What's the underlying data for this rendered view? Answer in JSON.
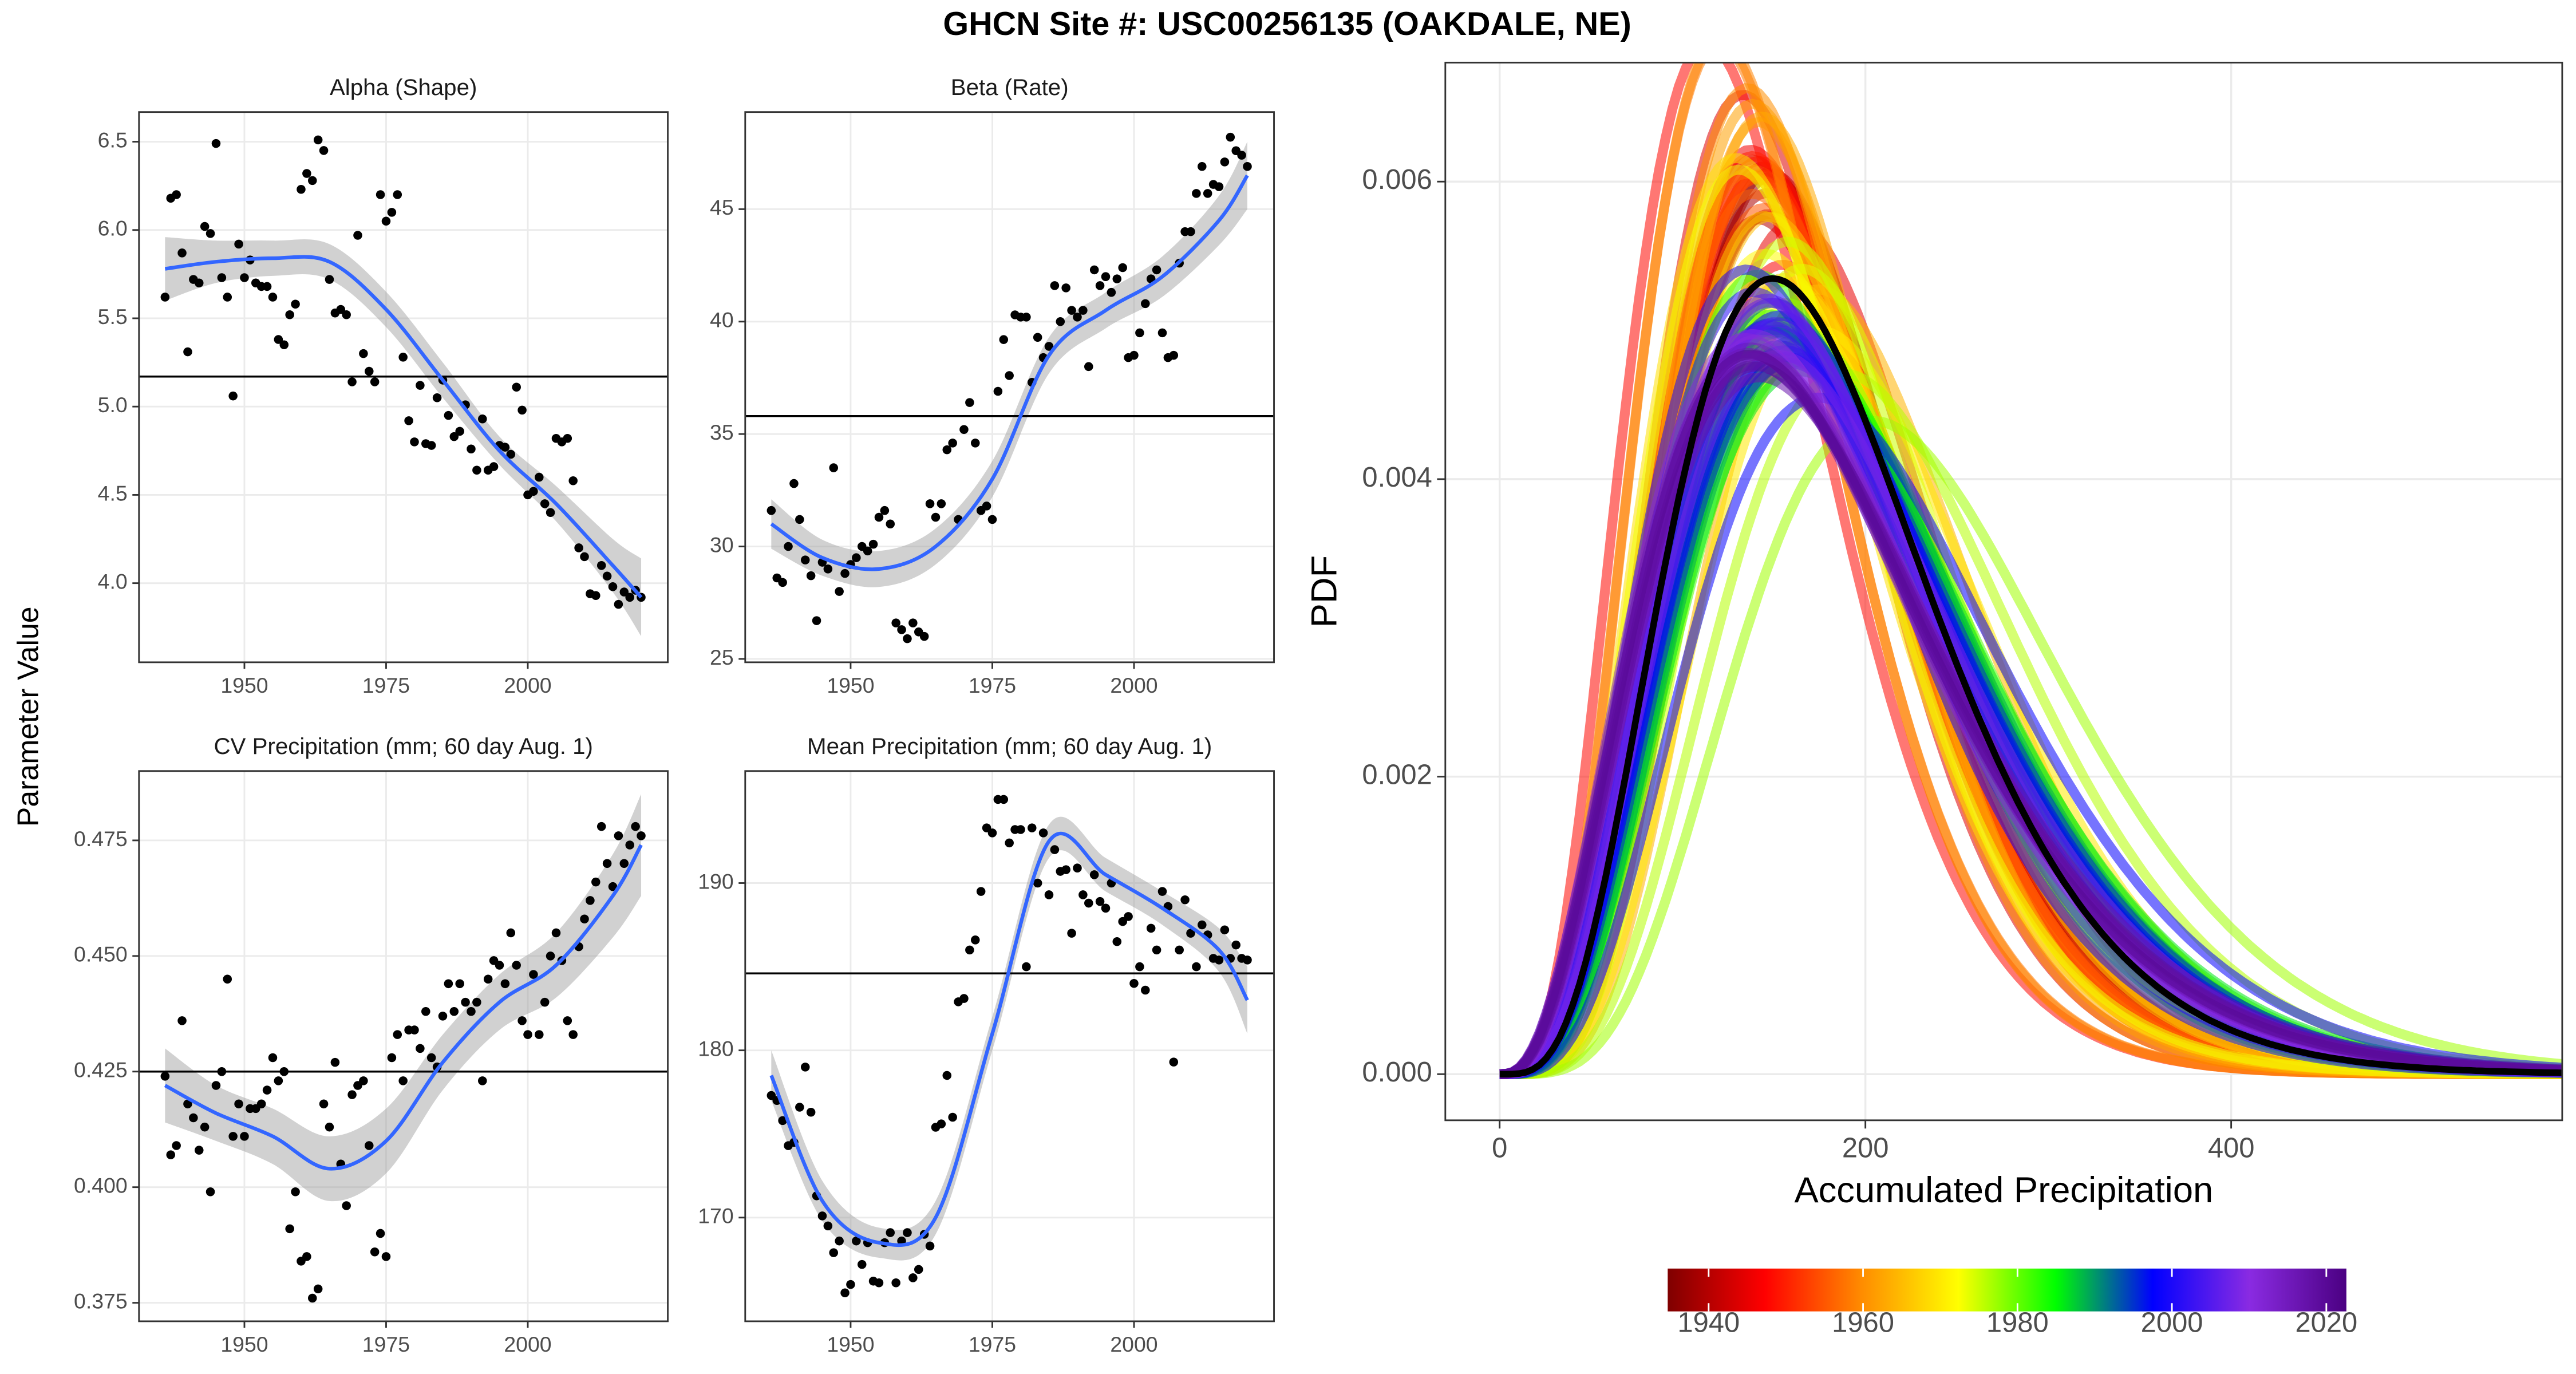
{
  "title": "GHCN Site #: USC00256135 (OAKDALE, NE)",
  "y_label": "Parameter Value",
  "chart_data": [
    {
      "type": "scatter_smooth",
      "title": "Alpha (Shape)",
      "x": [
        1936,
        1937,
        1938,
        1939,
        1940,
        1941,
        1942,
        1943,
        1944,
        1945,
        1946,
        1947,
        1948,
        1949,
        1950,
        1951,
        1952,
        1953,
        1954,
        1955,
        1956,
        1957,
        1958,
        1959,
        1960,
        1961,
        1962,
        1963,
        1964,
        1965,
        1966,
        1967,
        1968,
        1969,
        1970,
        1971,
        1972,
        1973,
        1974,
        1975,
        1976,
        1977,
        1978,
        1979,
        1980,
        1981,
        1982,
        1983,
        1984,
        1985,
        1986,
        1987,
        1988,
        1989,
        1990,
        1991,
        1992,
        1993,
        1994,
        1995,
        1996,
        1997,
        1998,
        1999,
        2000,
        2001,
        2002,
        2003,
        2004,
        2005,
        2006,
        2007,
        2008,
        2009,
        2010,
        2011,
        2012,
        2013,
        2014,
        2015,
        2016,
        2017,
        2018,
        2019,
        2020
      ],
      "values": [
        5.62,
        6.18,
        6.2,
        5.87,
        5.31,
        5.72,
        5.7,
        6.02,
        5.98,
        6.49,
        5.73,
        5.62,
        5.06,
        5.92,
        5.73,
        5.83,
        5.7,
        5.68,
        5.68,
        5.62,
        5.38,
        5.35,
        5.52,
        5.58,
        6.23,
        6.32,
        6.28,
        6.51,
        6.45,
        5.72,
        5.53,
        5.55,
        5.52,
        5.14,
        5.97,
        5.3,
        5.2,
        5.14,
        6.2,
        6.05,
        6.1,
        6.2,
        5.28,
        4.92,
        4.8,
        5.12,
        4.79,
        4.78,
        5.05,
        5.15,
        4.95,
        4.83,
        4.86,
        5.01,
        4.76,
        4.64,
        4.93,
        4.64,
        4.66,
        4.78,
        4.77,
        4.73,
        5.11,
        4.98,
        4.5,
        4.52,
        4.6,
        4.45,
        4.4,
        4.82,
        4.8,
        4.82,
        4.58,
        4.2,
        4.15,
        3.94,
        3.93,
        4.1,
        4.04,
        3.98,
        3.88,
        3.95,
        3.92,
        3.96,
        3.92
      ],
      "smooth": {
        "x": [
          1936,
          1945,
          1955,
          1965,
          1975,
          1985,
          1995,
          2005,
          2015,
          2020
        ],
        "values": [
          5.78,
          5.82,
          5.84,
          5.82,
          5.55,
          5.15,
          4.75,
          4.45,
          4.1,
          3.92
        ],
        "lower": [
          5.6,
          5.7,
          5.74,
          5.72,
          5.45,
          5.05,
          4.67,
          4.35,
          3.95,
          3.7
        ],
        "upper": [
          5.96,
          5.94,
          5.94,
          5.92,
          5.65,
          5.25,
          4.83,
          4.55,
          4.25,
          4.14
        ]
      },
      "hline": 5.17,
      "xlim": [
        1931.4,
        2024.7
      ],
      "xticks": [
        1950,
        1975,
        2000
      ],
      "ylim": [
        3.552,
        6.668
      ],
      "yticks": [
        {
          "value": 4,
          "label": "4.0"
        },
        4.5,
        {
          "value": 5,
          "label": "5.0"
        },
        5.5,
        {
          "value": 6,
          "label": "6.0"
        },
        6.5
      ],
      "point_color": "#000000",
      "smooth_color": "#3366ff",
      "ribbon_color": "#999999",
      "grid": true
    },
    {
      "type": "scatter_smooth",
      "title": "Beta (Rate)",
      "x": [
        1936,
        1937,
        1938,
        1939,
        1940,
        1941,
        1942,
        1943,
        1944,
        1945,
        1946,
        1947,
        1948,
        1949,
        1950,
        1951,
        1952,
        1953,
        1954,
        1955,
        1956,
        1957,
        1958,
        1959,
        1960,
        1961,
        1962,
        1963,
        1964,
        1965,
        1966,
        1967,
        1968,
        1969,
        1970,
        1971,
        1972,
        1973,
        1974,
        1975,
        1976,
        1977,
        1978,
        1979,
        1980,
        1981,
        1982,
        1983,
        1984,
        1985,
        1986,
        1987,
        1988,
        1989,
        1990,
        1991,
        1992,
        1993,
        1994,
        1995,
        1996,
        1997,
        1998,
        1999,
        2000,
        2001,
        2002,
        2003,
        2004,
        2005,
        2006,
        2007,
        2008,
        2009,
        2010,
        2011,
        2012,
        2013,
        2014,
        2015,
        2016,
        2017,
        2018,
        2019,
        2020
      ],
      "values": [
        31.6,
        28.6,
        28.4,
        30.0,
        32.8,
        31.2,
        29.4,
        28.7,
        26.7,
        29.3,
        29.0,
        33.5,
        28.0,
        28.8,
        29.2,
        29.5,
        30.0,
        29.8,
        30.1,
        31.3,
        31.6,
        31.0,
        26.6,
        26.3,
        25.9,
        26.6,
        26.2,
        26.0,
        31.9,
        31.3,
        31.9,
        34.3,
        34.6,
        31.2,
        35.2,
        36.4,
        34.6,
        31.6,
        31.8,
        31.2,
        36.9,
        39.2,
        37.6,
        40.3,
        40.2,
        40.2,
        37.3,
        39.3,
        38.4,
        38.9,
        41.6,
        40.0,
        41.5,
        40.5,
        40.2,
        40.5,
        38.0,
        42.3,
        41.6,
        42.0,
        41.3,
        41.9,
        42.4,
        38.4,
        38.5,
        39.5,
        40.8,
        41.9,
        42.3,
        39.5,
        38.4,
        38.5,
        42.6,
        44.0,
        44.0,
        45.7,
        46.9,
        45.7,
        46.1,
        46.0,
        47.1,
        48.2,
        47.6,
        47.4,
        46.9
      ],
      "smooth": {
        "x": [
          1936,
          1945,
          1955,
          1965,
          1975,
          1985,
          1995,
          2005,
          2015,
          2020
        ],
        "values": [
          31.0,
          29.5,
          29.0,
          30.0,
          33.0,
          38.5,
          40.5,
          42.0,
          44.5,
          46.5
        ],
        "lower": [
          29.9,
          28.7,
          28.2,
          29.2,
          32.2,
          37.7,
          39.7,
          41.1,
          43.4,
          45.0
        ],
        "upper": [
          32.1,
          30.3,
          29.8,
          30.8,
          33.8,
          39.3,
          41.3,
          42.9,
          45.6,
          48.0
        ]
      },
      "hline": 35.8,
      "xlim": [
        1931.4,
        2024.7
      ],
      "xticks": [
        1950,
        1975,
        2000
      ],
      "ylim": [
        24.85,
        49.32
      ],
      "yticks": [
        25,
        30,
        35,
        40,
        45
      ],
      "point_color": "#000000",
      "smooth_color": "#3366ff",
      "ribbon_color": "#999999",
      "grid": true
    },
    {
      "type": "scatter_smooth",
      "title": "CV Precipitation (mm; 60 day Aug. 1)",
      "x": [
        1936,
        1937,
        1938,
        1939,
        1940,
        1941,
        1942,
        1943,
        1944,
        1945,
        1946,
        1947,
        1948,
        1949,
        1950,
        1951,
        1952,
        1953,
        1954,
        1955,
        1956,
        1957,
        1958,
        1959,
        1960,
        1961,
        1962,
        1963,
        1964,
        1965,
        1966,
        1967,
        1968,
        1969,
        1970,
        1971,
        1972,
        1973,
        1974,
        1975,
        1976,
        1977,
        1978,
        1979,
        1980,
        1981,
        1982,
        1983,
        1984,
        1985,
        1986,
        1987,
        1988,
        1989,
        1990,
        1991,
        1992,
        1993,
        1994,
        1995,
        1996,
        1997,
        1998,
        1999,
        2000,
        2001,
        2002,
        2003,
        2004,
        2005,
        2006,
        2007,
        2008,
        2009,
        2010,
        2011,
        2012,
        2013,
        2014,
        2015,
        2016,
        2017,
        2018,
        2019,
        2020
      ],
      "values": [
        0.424,
        0.407,
        0.409,
        0.436,
        0.418,
        0.415,
        0.408,
        0.413,
        0.399,
        0.422,
        0.425,
        0.445,
        0.411,
        0.418,
        0.411,
        0.417,
        0.417,
        0.418,
        0.421,
        0.428,
        0.423,
        0.425,
        0.391,
        0.399,
        0.384,
        0.385,
        0.376,
        0.378,
        0.418,
        0.413,
        0.427,
        0.405,
        0.396,
        0.42,
        0.422,
        0.423,
        0.409,
        0.386,
        0.39,
        0.385,
        0.428,
        0.433,
        0.423,
        0.434,
        0.434,
        0.43,
        0.438,
        0.428,
        0.426,
        0.437,
        0.444,
        0.438,
        0.444,
        0.44,
        0.438,
        0.44,
        0.423,
        0.445,
        0.449,
        0.448,
        0.444,
        0.455,
        0.448,
        0.436,
        0.433,
        0.446,
        0.433,
        0.44,
        0.45,
        0.455,
        0.449,
        0.436,
        0.433,
        0.452,
        0.458,
        0.462,
        0.466,
        0.478,
        0.47,
        0.465,
        0.476,
        0.47,
        0.474,
        0.478,
        0.476
      ],
      "smooth": {
        "x": [
          1936,
          1945,
          1955,
          1965,
          1975,
          1985,
          1995,
          2005,
          2015,
          2020
        ],
        "values": [
          0.422,
          0.416,
          0.411,
          0.404,
          0.41,
          0.427,
          0.44,
          0.448,
          0.463,
          0.474
        ],
        "lower": [
          0.414,
          0.41,
          0.405,
          0.397,
          0.403,
          0.421,
          0.434,
          0.441,
          0.454,
          0.463
        ],
        "upper": [
          0.43,
          0.422,
          0.417,
          0.411,
          0.417,
          0.433,
          0.446,
          0.455,
          0.472,
          0.485
        ]
      },
      "hline": 0.425,
      "xlim": [
        1931.4,
        2024.7
      ],
      "xticks": [
        1950,
        1975,
        2000
      ],
      "ylim": [
        0.371,
        0.49
      ],
      "yticks": [
        0.375,
        {
          "value": 0.4,
          "label": "0.400"
        },
        0.425,
        {
          "value": 0.45,
          "label": "0.450"
        },
        0.475
      ],
      "point_color": "#000000",
      "smooth_color": "#3366ff",
      "ribbon_color": "#999999",
      "grid": true
    },
    {
      "type": "scatter_smooth",
      "title": "Mean Precipitation (mm; 60 day Aug. 1)",
      "x": [
        1936,
        1937,
        1938,
        1939,
        1940,
        1941,
        1942,
        1943,
        1944,
        1945,
        1946,
        1947,
        1948,
        1949,
        1950,
        1951,
        1952,
        1953,
        1954,
        1955,
        1956,
        1957,
        1958,
        1959,
        1960,
        1961,
        1962,
        1963,
        1964,
        1965,
        1966,
        1967,
        1968,
        1969,
        1970,
        1971,
        1972,
        1973,
        1974,
        1975,
        1976,
        1977,
        1978,
        1979,
        1980,
        1981,
        1982,
        1983,
        1984,
        1985,
        1986,
        1987,
        1988,
        1989,
        1990,
        1991,
        1992,
        1993,
        1994,
        1995,
        1996,
        1997,
        1998,
        1999,
        2000,
        2001,
        2002,
        2003,
        2004,
        2005,
        2006,
        2007,
        2008,
        2009,
        2010,
        2011,
        2012,
        2013,
        2014,
        2015,
        2016,
        2017,
        2018,
        2019,
        2020
      ],
      "values": [
        177.3,
        177.0,
        175.8,
        174.3,
        174.5,
        176.6,
        179.0,
        176.3,
        171.3,
        170.1,
        169.5,
        167.9,
        168.6,
        165.5,
        166.0,
        168.6,
        167.2,
        168.5,
        166.2,
        166.1,
        168.5,
        169.1,
        166.1,
        168.6,
        169.1,
        166.4,
        166.9,
        169.0,
        168.3,
        175.4,
        175.6,
        178.5,
        176.0,
        182.9,
        183.1,
        186.0,
        186.6,
        189.5,
        193.3,
        193.0,
        195.0,
        195.0,
        192.4,
        193.2,
        193.2,
        185.0,
        193.3,
        190.0,
        193.0,
        189.3,
        192.0,
        190.7,
        190.8,
        187.0,
        190.9,
        189.3,
        188.8,
        190.5,
        188.9,
        188.5,
        190.0,
        186.5,
        187.7,
        188.0,
        184.0,
        185.0,
        183.6,
        187.3,
        186.0,
        189.5,
        188.6,
        179.3,
        186.0,
        189.0,
        187.0,
        185.0,
        187.5,
        186.9,
        185.5,
        185.4,
        187.2,
        185.5,
        186.3,
        185.5,
        185.4
      ],
      "smooth": {
        "x": [
          1936,
          1945,
          1955,
          1965,
          1975,
          1985,
          1995,
          2005,
          2015,
          2020
        ],
        "values": [
          178.5,
          171.0,
          168.5,
          170.0,
          181.0,
          192.5,
          190.5,
          188.5,
          186.0,
          183.0
        ],
        "lower": [
          177.0,
          169.8,
          167.6,
          169.0,
          180.0,
          191.5,
          189.5,
          187.5,
          184.7,
          181.0
        ],
        "upper": [
          180.0,
          172.2,
          169.4,
          171.0,
          182.0,
          193.5,
          191.5,
          189.5,
          187.3,
          185.0
        ]
      },
      "hline": 184.6,
      "xlim": [
        1931.4,
        2024.7
      ],
      "xticks": [
        1950,
        1975,
        2000
      ],
      "ylim": [
        163.8,
        196.7
      ],
      "yticks": [
        170,
        180,
        190
      ],
      "point_color": "#000000",
      "smooth_color": "#3366ff",
      "ribbon_color": "#999999",
      "grid": true
    },
    {
      "type": "gamma_density",
      "x_label": "Accumulated Precipitation",
      "y_label": "PDF",
      "xlim": [
        -29.7,
        581
      ],
      "xticks": [
        0,
        200,
        400
      ],
      "ylim": [
        -0.00031,
        0.0068
      ],
      "yticks": [
        {
          "value": 0,
          "label": "0.000"
        },
        0.002,
        0.004,
        0.006
      ],
      "mean_color": "#000000",
      "grid": true,
      "colorbar": {
        "colors": [
          "#7f0000",
          "#ff0000",
          "#ff8c00",
          "#ffff00",
          "#00ff00",
          "#0000ff",
          "#8a2be2",
          "#4b0082"
        ],
        "lim": [
          1934.7,
          2022.6
        ],
        "ticks": [
          1940,
          1960,
          1980,
          2000,
          2020
        ]
      }
    }
  ]
}
